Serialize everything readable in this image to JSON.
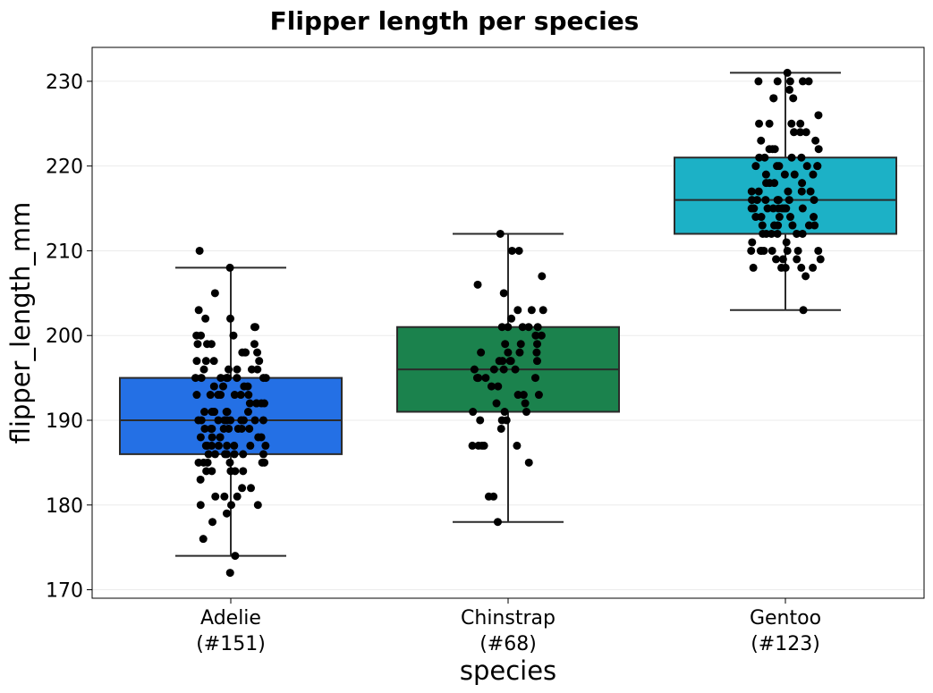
{
  "chart_data": {
    "type": "box",
    "title": "Flipper length per species",
    "xlabel": "species",
    "ylabel": "flipper_length_mm",
    "ylim": [
      169,
      234
    ],
    "yticks": [
      170,
      180,
      190,
      200,
      210,
      220,
      230
    ],
    "grid": "horizontal",
    "categories": [
      {
        "name": "Adelie",
        "count_label": "(#151)",
        "color": "#2470e5",
        "whisker_low": 174,
        "q1": 186,
        "median": 190,
        "q3": 195,
        "whisker_high": 208,
        "points": [
          172,
          174,
          176,
          178,
          179,
          180,
          180,
          180,
          181,
          181,
          181,
          182,
          182,
          183,
          184,
          184,
          184,
          184,
          184,
          185,
          185,
          185,
          185,
          185,
          185,
          186,
          186,
          186,
          186,
          186,
          186,
          186,
          187,
          187,
          187,
          187,
          187,
          187,
          187,
          187,
          188,
          188,
          188,
          188,
          188,
          188,
          189,
          189,
          189,
          189,
          189,
          189,
          189,
          189,
          190,
          190,
          190,
          190,
          190,
          190,
          190,
          190,
          190,
          190,
          190,
          190,
          191,
          191,
          191,
          191,
          191,
          191,
          191,
          192,
          192,
          192,
          192,
          192,
          193,
          193,
          193,
          193,
          193,
          193,
          193,
          194,
          194,
          194,
          194,
          195,
          195,
          195,
          195,
          195,
          195,
          195,
          195,
          196,
          196,
          196,
          196,
          196,
          197,
          197,
          197,
          197,
          198,
          198,
          198,
          198,
          199,
          199,
          199,
          199,
          200,
          200,
          200,
          201,
          201,
          202,
          202,
          203,
          205,
          208,
          210
        ]
      },
      {
        "name": "Chinstrap",
        "count_label": "(#68)",
        "color": "#1b824d",
        "whisker_low": 178,
        "q1": 191,
        "median": 196,
        "q3": 201,
        "whisker_high": 212,
        "points": [
          178,
          181,
          181,
          185,
          187,
          187,
          187,
          187,
          187,
          189,
          190,
          190,
          190,
          191,
          191,
          191,
          192,
          192,
          193,
          193,
          193,
          194,
          194,
          195,
          195,
          195,
          195,
          195,
          196,
          196,
          196,
          196,
          197,
          197,
          197,
          197,
          197,
          198,
          198,
          198,
          198,
          199,
          199,
          199,
          200,
          200,
          201,
          201,
          201,
          201,
          201,
          202,
          203,
          203,
          203,
          205,
          206,
          207,
          210,
          210,
          212
        ]
      },
      {
        "name": "Gentoo",
        "count_label": "(#123)",
        "color": "#1cb1c6",
        "whisker_low": 203,
        "q1": 212,
        "median": 216,
        "q3": 221,
        "whisker_high": 231,
        "points": [
          203,
          207,
          208,
          208,
          208,
          208,
          208,
          209,
          209,
          209,
          209,
          210,
          210,
          210,
          210,
          210,
          210,
          210,
          210,
          211,
          211,
          212,
          212,
          212,
          212,
          212,
          212,
          213,
          213,
          213,
          213,
          213,
          213,
          214,
          214,
          214,
          214,
          214,
          215,
          215,
          215,
          215,
          215,
          215,
          215,
          215,
          215,
          216,
          216,
          216,
          216,
          216,
          216,
          216,
          217,
          217,
          217,
          217,
          217,
          218,
          218,
          218,
          218,
          219,
          219,
          219,
          219,
          220,
          220,
          220,
          220,
          220,
          220,
          221,
          221,
          221,
          221,
          222,
          222,
          222,
          222,
          223,
          223,
          224,
          224,
          224,
          225,
          225,
          225,
          225,
          226,
          228,
          228,
          228,
          229,
          230,
          230,
          230,
          230,
          230,
          231
        ]
      }
    ]
  }
}
